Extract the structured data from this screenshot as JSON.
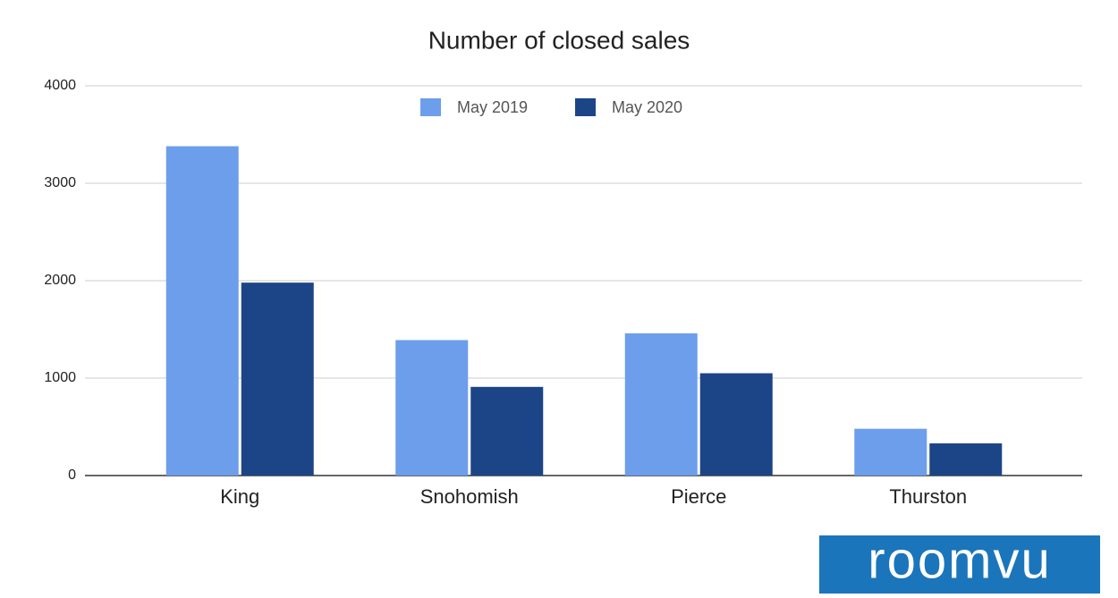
{
  "chart_data": {
    "type": "bar",
    "title": "Number of closed sales",
    "categories": [
      "King",
      "Snohomish",
      "Pierce",
      "Thurston"
    ],
    "series": [
      {
        "name": "May 2019",
        "color": "#6d9eeb",
        "values": [
          3380,
          1390,
          1460,
          480
        ]
      },
      {
        "name": "May 2020",
        "color": "#1c4587",
        "values": [
          1980,
          910,
          1050,
          330
        ]
      }
    ],
    "ylim": [
      0,
      4000
    ],
    "yticks": [
      0,
      1000,
      2000,
      3000,
      4000
    ],
    "grid": true,
    "legend": "top"
  },
  "logo": "roomvu"
}
